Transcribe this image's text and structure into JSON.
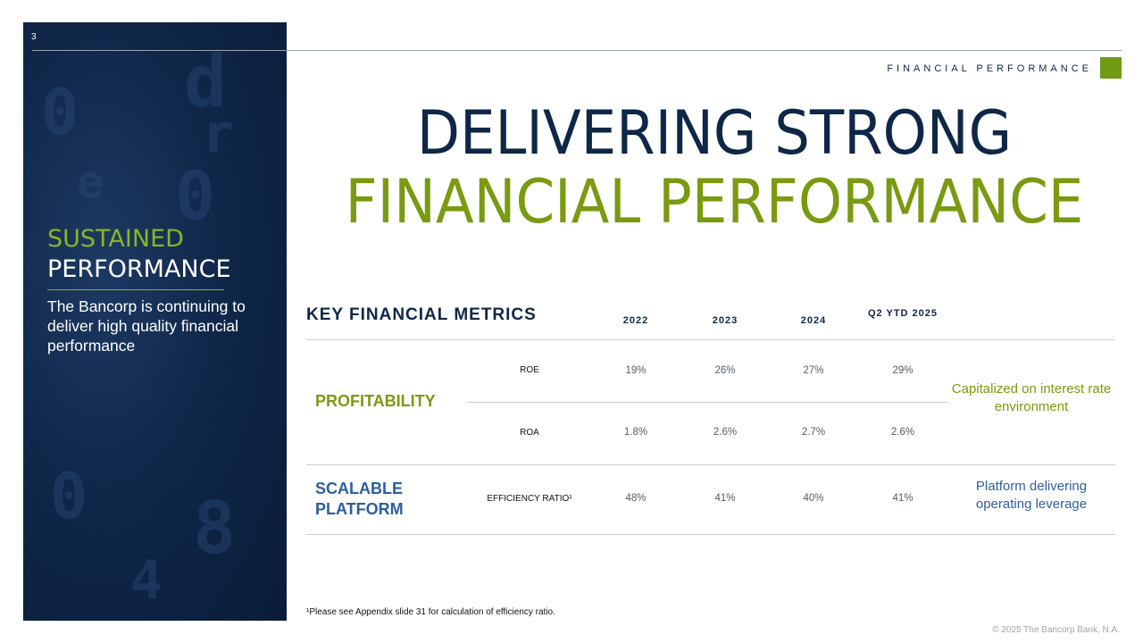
{
  "slide": {
    "number": "3",
    "section_label": "FINANCIAL PERFORMANCE",
    "title_line1": "DELIVERING STRONG",
    "title_line2": "FINANCIAL PERFORMANCE"
  },
  "sidebar": {
    "heading_line1": "SUSTAINED",
    "heading_line2": "PERFORMANCE",
    "body": "The Bancorp is continuing to deliver high quality financial performance"
  },
  "table": {
    "heading": "KEY FINANCIAL METRICS",
    "columns": [
      "2022",
      "2023",
      "2024",
      "Q2 YTD 2025"
    ],
    "groups": [
      {
        "label": "PROFITABILITY",
        "color": "#7a9a10",
        "note": "Capitalized on interest rate environment",
        "rows": [
          {
            "metric": "ROE",
            "values": [
              "19%",
              "26%",
              "27%",
              "29%"
            ]
          },
          {
            "metric": "ROA",
            "values": [
              "1.8%",
              "2.6%",
              "2.7%",
              "2.6%"
            ]
          }
        ]
      },
      {
        "label": "SCALABLE PLATFORM",
        "color": "#2e5e9e",
        "note": "Platform delivering operating leverage",
        "rows": [
          {
            "metric": "EFFICIENCY RATIO¹",
            "values": [
              "48%",
              "41%",
              "40%",
              "41%"
            ]
          }
        ]
      }
    ]
  },
  "footnote": "¹Please see Appendix slide 31 for calculation of efficiency ratio.",
  "copyright": "© 2025 The Bancorp Bank, N.A.",
  "colors": {
    "navy": "#0f2747",
    "green": "#7a9a10",
    "blue": "#2e5e9e"
  }
}
